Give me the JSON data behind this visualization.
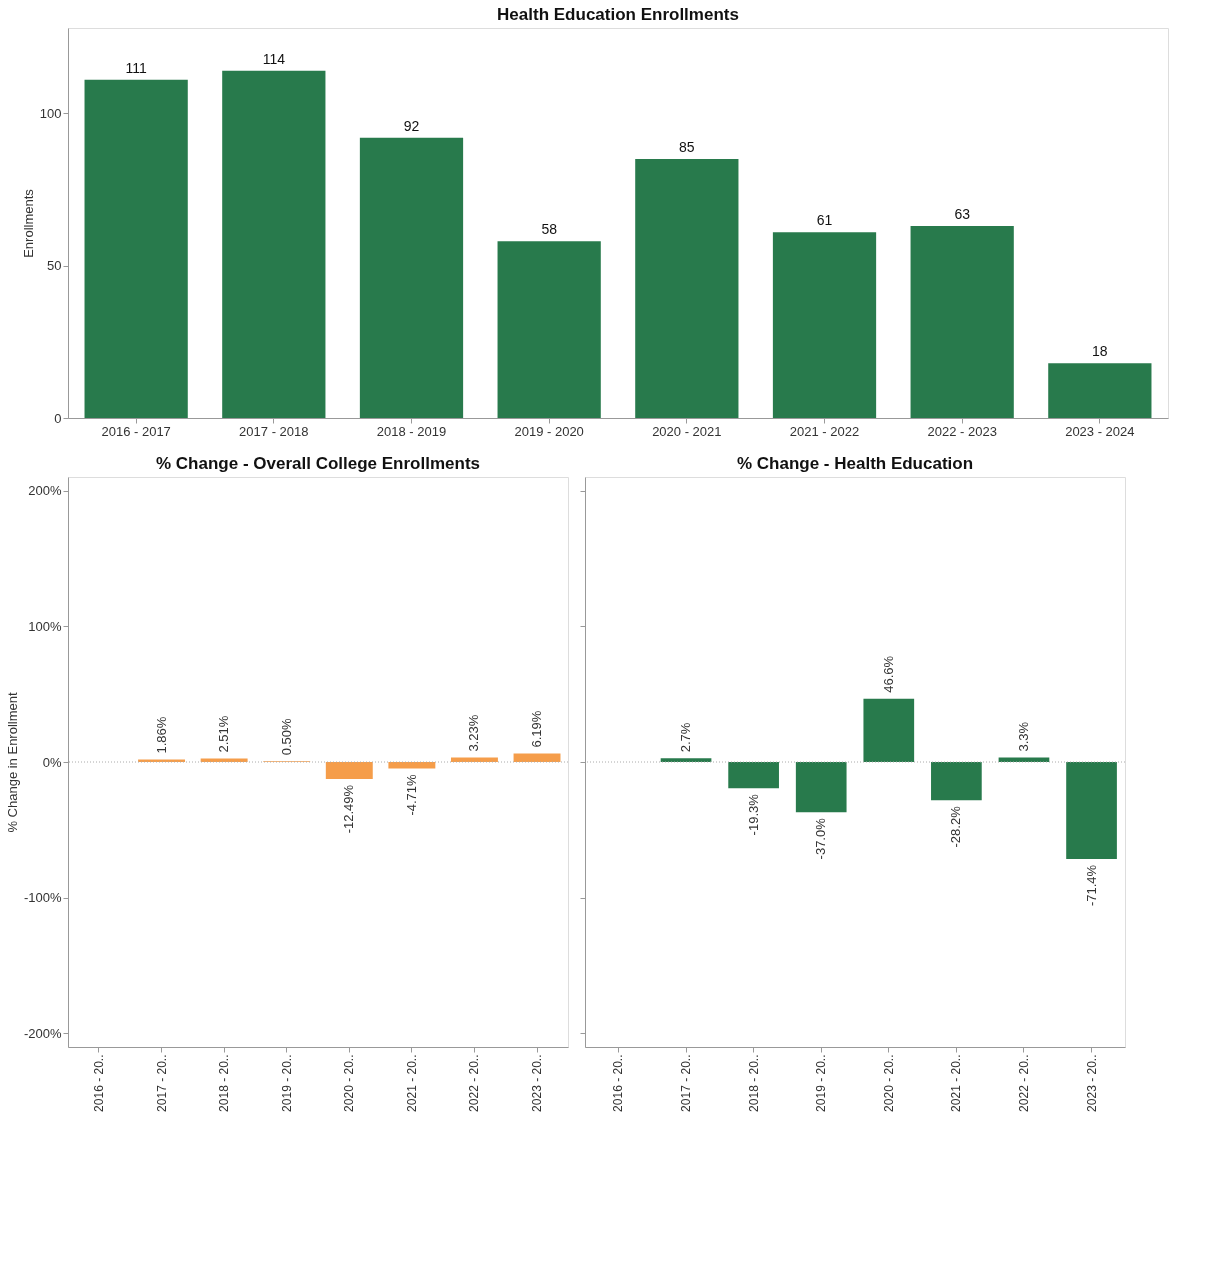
{
  "chart_data": [
    {
      "type": "bar",
      "title": "Health Education Enrollments",
      "ylabel": "Enrollments",
      "categories": [
        "2016 - 2017",
        "2017 - 2018",
        "2018 - 2019",
        "2019 - 2020",
        "2020 - 2021",
        "2021 - 2022",
        "2022 - 2023",
        "2023 - 2024"
      ],
      "values": [
        111,
        114,
        92,
        58,
        85,
        61,
        63,
        18
      ],
      "color": "#287a4c",
      "data_labels": true,
      "ylim": [
        0,
        128
      ],
      "yticks": [
        0,
        50,
        100
      ],
      "grid": false
    },
    {
      "type": "bar",
      "title": "% Change - Overall College Enrollments",
      "ylabel": "% Change in Enrollment",
      "categories": [
        "2016 - 20..",
        "2017 - 20..",
        "2018 - 20..",
        "2019 - 20..",
        "2020 - 20..",
        "2021 - 20..",
        "2022 - 20..",
        "2023 - 20.."
      ],
      "values": [
        null,
        1.86,
        2.51,
        0.5,
        -12.49,
        -4.71,
        3.23,
        6.19
      ],
      "value_labels": [
        null,
        "1.86%",
        "2.51%",
        "0.50%",
        "-12.49%",
        "-4.71%",
        "3.23%",
        "6.19%"
      ],
      "color": "#f59d4a",
      "ylim": [
        -210,
        210
      ],
      "yticks": [
        {
          "value": -200,
          "label": "-200%"
        },
        {
          "value": -100,
          "label": "-100%"
        },
        {
          "value": 0,
          "label": "0%"
        },
        {
          "value": 100,
          "label": "100%"
        },
        {
          "value": 200,
          "label": "200%"
        }
      ],
      "grid": false,
      "ref_lines": [
        {
          "axis": "y",
          "value": 0,
          "color": "#aaaaaa",
          "line_style": "dotted"
        }
      ]
    },
    {
      "type": "bar",
      "title": "% Change - Health Education",
      "categories": [
        "2016 - 20..",
        "2017 - 20..",
        "2018 - 20..",
        "2019 - 20..",
        "2020 - 20..",
        "2021 - 20..",
        "2022 - 20..",
        "2023 - 20.."
      ],
      "values": [
        null,
        2.7,
        -19.3,
        -37.0,
        46.6,
        -28.2,
        3.3,
        -71.4
      ],
      "value_labels": [
        null,
        "2.7%",
        "-19.3%",
        "-37.0%",
        "46.6%",
        "-28.2%",
        "3.3%",
        "-71.4%"
      ],
      "color": "#287a4c",
      "ylim": [
        -210,
        210
      ],
      "yticks": [
        -200,
        -100,
        0,
        100,
        200
      ],
      "grid": false,
      "tick_labels": "x",
      "ref_lines": [
        {
          "axis": "y",
          "value": 0,
          "color": "#aaaaaa",
          "line_style": "dotted"
        }
      ]
    }
  ]
}
